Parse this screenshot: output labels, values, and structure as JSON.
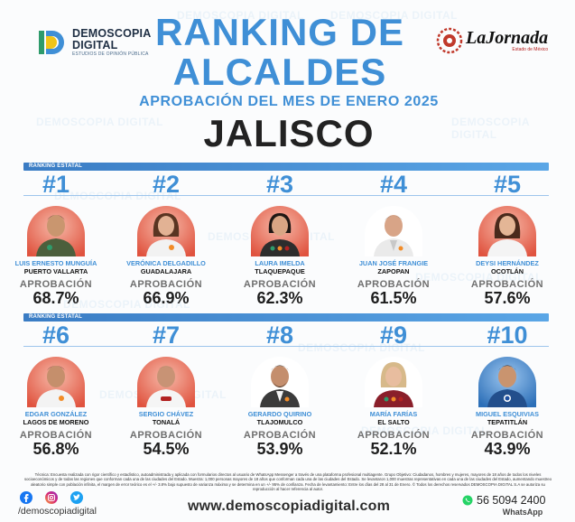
{
  "header": {
    "brand_name_1": "DEMOSCOPIA",
    "brand_name_2": "DIGITAL",
    "brand_tagline": "ESTUDIOS DE OPINIÓN PÚBLICA",
    "title_line1": "RANKING DE",
    "title_line2": "ALCALDES",
    "subtitle": "APROBACIÓN DEL MES DE ENERO 2025",
    "state": "JALISCO",
    "partner_name": "LaJornada",
    "partner_sub": "Estado de México"
  },
  "watermark": "DEMOSCOPIA DIGITAL",
  "ranking_label": "RANKING ESTATAL",
  "approval_label": "APROBACIÓN",
  "mayors": [
    {
      "rank": "#1",
      "name": "LUIS ERNESTO MUNGUÍA",
      "city": "PUERTO VALLARTA",
      "approval": "68.7%"
    },
    {
      "rank": "#2",
      "name": "VERÓNICA DELGADILLO",
      "city": "GUADALAJARA",
      "approval": "66.9%"
    },
    {
      "rank": "#3",
      "name": "LAURA IMELDA",
      "city": "TLAQUEPAQUE",
      "approval": "62.3%"
    },
    {
      "rank": "#4",
      "name": "JUAN JOSÉ FRANGIE",
      "city": "ZAPOPAN",
      "approval": "61.5%"
    },
    {
      "rank": "#5",
      "name": "DEYSI HERNÁNDEZ",
      "city": "OCOTLÁN",
      "approval": "57.6%"
    },
    {
      "rank": "#6",
      "name": "EDGAR GONZÁLEZ",
      "city": "LAGOS DE MORENO",
      "approval": "56.8%"
    },
    {
      "rank": "#7",
      "name": "SERGIO CHÁVEZ",
      "city": "TONALÁ",
      "approval": "54.5%"
    },
    {
      "rank": "#8",
      "name": "GERARDO QUIRINO",
      "city": "TLAJOMULCO",
      "approval": "53.9%"
    },
    {
      "rank": "#9",
      "name": "MARÍA FARÍAS",
      "city": "EL SALTO",
      "approval": "52.1%"
    },
    {
      "rank": "#10",
      "name": "MIGUEL ESQUIVIAS",
      "city": "TEPATITLÁN",
      "approval": "43.9%"
    }
  ],
  "footer": {
    "methodology": "Técnica: Encuesta realizada con rigor científico y estadístico, autoadministrada y aplicada con formularios directos al usuario de WhatsApp Messenger a través de una plataforma profesional multiagente. Grupo Objetivo: Ciudadanos, hombres y mujeres, mayores de 18 años de todos los niveles socioeconómicos y de todas las regiones que conforman cada una de las ciudades del Estado. Muestra: 1,000 personas mayores de 18 años que conforman cada una de las ciudades del Estado. Se levantaron 1,000 muestras representativas en cada una de las ciudades del Estado, aumentando muestreo aleatorio simple con población infinita, el margen de error teórico es el +/- 3.8% bajo supuesto de varianza máxima y se determina en un +/- 95% de confianza. Fecha de levantamiento: Entre los días del 28 al 31 de Enero. © Todos los derechos reservados DEMOSCOPIA DIGITAL S.A se autoriza su reproducción al hacer referencia al autor.",
    "handle": "/demoscopiadigital",
    "website": "www.demoscopiadigital.com",
    "whatsapp_number": "56 5094 2400",
    "whatsapp_label": "WhatsApp"
  },
  "colors": {
    "accent": "#3f8fd6",
    "bar": "#3a7cc4",
    "photo_bg": "#e04a3a"
  }
}
